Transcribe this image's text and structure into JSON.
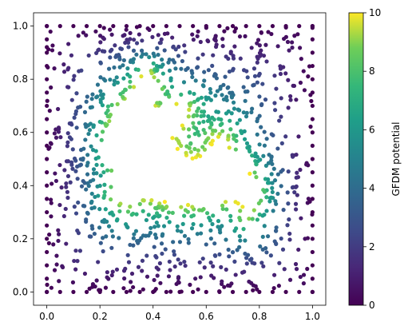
{
  "chart_data": {
    "type": "scatter",
    "title": "",
    "xlabel": "",
    "ylabel": "",
    "xlim": [
      -0.05,
      1.05
    ],
    "ylim": [
      -0.05,
      1.05
    ],
    "x_ticks": [
      "0.0",
      "0.2",
      "0.4",
      "0.6",
      "0.8",
      "1.0"
    ],
    "y_ticks": [
      "0.0",
      "0.2",
      "0.4",
      "0.6",
      "0.8",
      "1.0"
    ],
    "grid": false,
    "legend": "none",
    "colorbar": {
      "label": "GFDM potential",
      "range": [
        0,
        10
      ],
      "ticks": [
        "0",
        "2",
        "4",
        "6",
        "8",
        "10"
      ],
      "colormap": "viridis"
    },
    "description_of_points": "Scattered nodes on the unit square, colored by GFDM potential; value 10 on the boundary of a dolphin-shaped hole near the center, decaying toward 0 at the square's outer edges.",
    "sample_points": [
      {
        "x": 0.0,
        "y": 0.0,
        "value": 0.0
      },
      {
        "x": 1.0,
        "y": 1.0,
        "value": 0.0
      },
      {
        "x": 0.5,
        "y": 1.0,
        "value": 0.0
      },
      {
        "x": 0.4,
        "y": 0.82,
        "value": 9.5
      },
      {
        "x": 0.25,
        "y": 0.25,
        "value": 9.0
      },
      {
        "x": 0.82,
        "y": 0.45,
        "value": 8.0
      },
      {
        "x": 0.1,
        "y": 0.5,
        "value": 4.5
      },
      {
        "x": 0.9,
        "y": 0.8,
        "value": 3.0
      },
      {
        "x": 0.55,
        "y": 0.1,
        "value": 5.5
      }
    ]
  }
}
